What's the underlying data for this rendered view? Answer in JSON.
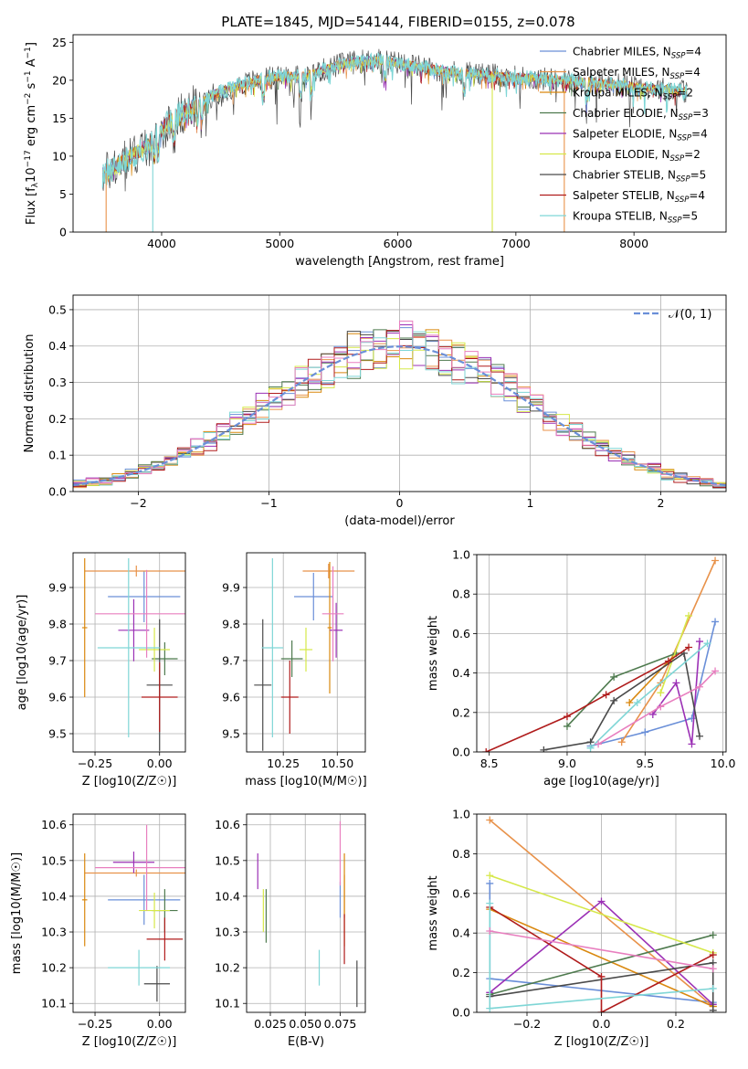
{
  "figure": {
    "title": "PLATE=1845, MJD=54144, FIBERID=0155, z=0.078"
  },
  "legend_models": [
    {
      "label": "Chabrier MILES, N$_{SSP}$=4",
      "base": "Chabrier MILES, N",
      "sub": "SSP",
      "tail": "=4",
      "color": "#6a8fd8"
    },
    {
      "label": "Salpeter MILES, N$_{SSP}$=4",
      "base": "Salpeter MILES, N",
      "sub": "SSP",
      "tail": "=4",
      "color": "#e8924a"
    },
    {
      "label": "Kroupa MILES, N$_{SSP}$=2",
      "base": "Kroupa MILES, N",
      "sub": "SSP",
      "tail": "=2",
      "color": "#d9880f"
    },
    {
      "label": "Chabrier ELODIE, N$_{SSP}$=3",
      "base": "Chabrier ELODIE, N",
      "sub": "SSP",
      "tail": "=3",
      "color": "#4e7a4e"
    },
    {
      "label": "Salpeter ELODIE, N$_{SSP}$=4",
      "base": "Salpeter ELODIE, N",
      "sub": "SSP",
      "tail": "=4",
      "color": "#9b30b5"
    },
    {
      "label": "Kroupa ELODIE, N$_{SSP}$=2",
      "base": "Kroupa ELODIE, N",
      "sub": "SSP",
      "tail": "=2",
      "color": "#d6e84a"
    },
    {
      "label": "Chabrier STELIB, N$_{SSP}$=5",
      "base": "Chabrier STELIB, N",
      "sub": "SSP",
      "tail": "=5",
      "color": "#4a4a4a"
    },
    {
      "label": "Salpeter STELIB, N$_{SSP}$=4",
      "base": "Salpeter STELIB, N",
      "sub": "SSP",
      "tail": "=4",
      "color": "#b01c1c"
    },
    {
      "label": "Kroupa STELIB, N$_{SSP}$=5",
      "base": "Kroupa STELIB, N",
      "sub": "SSP",
      "tail": "=5",
      "color": "#7fd6d6"
    }
  ],
  "chart_data": [
    {
      "id": "spectrum",
      "type": "line",
      "xlabel": "wavelength [Angstrom, rest frame]",
      "ylabel_parts": [
        "Flux [f",
        "λ",
        "10",
        "−17",
        " erg cm",
        "−2",
        " s",
        "−1",
        " A",
        "−1",
        "]"
      ],
      "xlim": [
        3250,
        8780
      ],
      "ylim": [
        0,
        26
      ],
      "xticks": [
        4000,
        5000,
        6000,
        7000,
        8000
      ],
      "yticks": [
        0,
        5,
        10,
        15,
        20,
        25
      ],
      "grid": false,
      "legend": "right",
      "continuum": {
        "x": [
          3500,
          3600,
          3700,
          3800,
          3900,
          4000,
          4100,
          4200,
          4300,
          4400,
          4500,
          4600,
          4700,
          4800,
          4900,
          5000,
          5100,
          5200,
          5300,
          5400,
          5500,
          5600,
          5700,
          5800,
          5900,
          6000,
          6100,
          6200,
          6300,
          6400,
          6500,
          6600,
          6700,
          6800,
          6900,
          7000,
          7100,
          7200,
          7300,
          7400,
          7500,
          7600,
          7700,
          7800,
          7900,
          8000,
          8100,
          8200,
          8300,
          8400,
          8450
        ],
        "y": [
          7.5,
          8.5,
          9.5,
          10.5,
          11.5,
          13.5,
          15.0,
          15.8,
          16.8,
          17.8,
          18.5,
          19.0,
          19.5,
          20.0,
          20.3,
          20.5,
          20.5,
          20.5,
          21.0,
          21.5,
          22.0,
          22.3,
          22.5,
          22.7,
          22.5,
          22.3,
          22.0,
          21.7,
          21.5,
          21.3,
          21.0,
          20.9,
          20.8,
          20.6,
          20.5,
          20.4,
          20.3,
          20.2,
          20.1,
          20.0,
          19.9,
          19.8,
          19.7,
          19.5,
          19.4,
          19.2,
          19.0,
          18.9,
          18.8,
          18.6,
          18.5
        ]
      },
      "drops": [
        {
          "x": 3530,
          "series": "Salpeter MILES"
        },
        {
          "x": 3925,
          "series": "Kroupa STELIB"
        },
        {
          "x": 6800,
          "series": "Kroupa ELODIE"
        },
        {
          "x": 7410,
          "series": "Salpeter MILES"
        }
      ]
    },
    {
      "id": "residual-histogram",
      "type": "histogram",
      "xlabel": "(data-model)/error",
      "ylabel": "Normed distribution",
      "xlim": [
        -2.5,
        2.5
      ],
      "ylim": [
        0,
        0.54
      ],
      "xticks": [
        -2,
        -1,
        0,
        1,
        2
      ],
      "yticks": [
        0.0,
        0.1,
        0.2,
        0.3,
        0.4,
        0.5
      ],
      "grid": true,
      "legend": "top-right",
      "reference": {
        "label": "$\\mathcal{N}(0,1)$",
        "display": "𝒩(0, 1)",
        "mean": 0,
        "sigma": 1,
        "color": "#6a8fd8",
        "style": "dashed"
      },
      "bin_width": 0.1
    },
    {
      "id": "age-vs-Z",
      "type": "errorbar",
      "xlabel": "Z [log10(Z/Z☉)]",
      "ylabel": "age  [log10(age/yr)]",
      "xlim": [
        -0.335,
        0.1
      ],
      "ylim": [
        9.45,
        9.995
      ],
      "xticks": [
        -0.25,
        0.0
      ],
      "yticks": [
        9.5,
        9.6,
        9.7,
        9.8,
        9.9
      ],
      "grid": true,
      "points": [
        {
          "series": "Chabrier MILES",
          "x": -0.06,
          "xerr": 0.14,
          "y": 9.875,
          "yerr": 0.07
        },
        {
          "series": "Salpeter MILES",
          "x": -0.09,
          "xerr": 0.2,
          "y": 9.945,
          "yerr": 0.015
        },
        {
          "series": "Kroupa MILES",
          "x": -0.29,
          "xerr": 0.01,
          "y": 9.79,
          "yerr": 0.19
        },
        {
          "series": "Chabrier ELODIE",
          "x": 0.02,
          "xerr": 0.05,
          "y": 9.705,
          "yerr": 0.045
        },
        {
          "series": "Salpeter ELODIE",
          "x": -0.1,
          "xerr": 0.06,
          "y": 9.783,
          "yerr": 0.085
        },
        {
          "series": "Kroupa ELODIE",
          "x": -0.02,
          "xerr": 0.06,
          "y": 9.73,
          "yerr": 0.06
        },
        {
          "series": "Chabrier STELIB",
          "x": 0.0,
          "xerr": 0.05,
          "y": 9.633,
          "yerr": 0.18
        },
        {
          "series": "Salpeter STELIB",
          "x": 0.0,
          "xerr": 0.07,
          "y": 9.6,
          "yerr": 0.095
        },
        {
          "series": "Kroupa STELIB",
          "x": -0.12,
          "xerr": 0.12,
          "y": 9.735,
          "yerr": 0.245
        },
        {
          "series": "pink",
          "x": -0.05,
          "xerr": 0.2,
          "y": 9.828,
          "yerr": 0.12
        }
      ]
    },
    {
      "id": "age-vs-mass",
      "type": "errorbar",
      "xlabel": "mass [log10(M/M☉)]",
      "ylabel": "",
      "xlim": [
        10.08,
        10.63
      ],
      "ylim": [
        9.45,
        9.995
      ],
      "xticks": [
        10.25,
        10.5
      ],
      "yticks": [
        9.5,
        9.6,
        9.7,
        9.8,
        9.9
      ],
      "grid": true,
      "points": [
        {
          "series": "Chabrier MILES",
          "x": 10.39,
          "xerr": 0.09,
          "y": 9.875,
          "yerr": 0.065
        },
        {
          "series": "Salpeter MILES",
          "x": 10.46,
          "xerr": 0.12,
          "y": 9.945,
          "yerr": 0.02
        },
        {
          "series": "Kroupa MILES",
          "x": 10.465,
          "xerr": 0.01,
          "y": 9.79,
          "yerr": 0.18
        },
        {
          "series": "Chabrier ELODIE",
          "x": 10.29,
          "xerr": 0.05,
          "y": 9.705,
          "yerr": 0.05
        },
        {
          "series": "Salpeter ELODIE",
          "x": 10.495,
          "xerr": 0.03,
          "y": 9.783,
          "yerr": 0.075
        },
        {
          "series": "Kroupa ELODIE",
          "x": 10.355,
          "xerr": 0.03,
          "y": 9.73,
          "yerr": 0.06
        },
        {
          "series": "Chabrier STELIB",
          "x": 10.155,
          "xerr": 0.04,
          "y": 9.633,
          "yerr": 0.18
        },
        {
          "series": "Salpeter STELIB",
          "x": 10.28,
          "xerr": 0.04,
          "y": 9.6,
          "yerr": 0.1
        },
        {
          "series": "Kroupa STELIB",
          "x": 10.2,
          "xerr": 0.05,
          "y": 9.735,
          "yerr": 0.245
        },
        {
          "series": "pink",
          "x": 10.48,
          "xerr": 0.05,
          "y": 9.828,
          "yerr": 0.13
        }
      ]
    },
    {
      "id": "weight-vs-age",
      "type": "line",
      "xlabel": "age  [log10(age/yr)]",
      "ylabel": "mass weight",
      "xlim": [
        8.42,
        10.02
      ],
      "ylim": [
        0,
        1.0
      ],
      "xticks": [
        8.5,
        9.0,
        9.5,
        10.0
      ],
      "yticks": [
        0.0,
        0.2,
        0.4,
        0.6,
        0.8,
        1.0
      ],
      "grid": true,
      "series": [
        {
          "name": "Chabrier MILES",
          "x": [
            9.15,
            9.5,
            9.8,
            9.95
          ],
          "y": [
            0.03,
            0.1,
            0.17,
            0.66
          ]
        },
        {
          "name": "Salpeter MILES",
          "x": [
            9.35,
            9.6,
            9.95
          ],
          "y": [
            0.05,
            0.35,
            0.97
          ]
        },
        {
          "name": "Kroupa MILES",
          "x": [
            9.4,
            9.7
          ],
          "y": [
            0.25,
            0.5
          ]
        },
        {
          "name": "Chabrier ELODIE",
          "x": [
            9.0,
            9.3,
            9.7
          ],
          "y": [
            0.13,
            0.38,
            0.5
          ]
        },
        {
          "name": "Salpeter ELODIE",
          "x": [
            9.55,
            9.7,
            9.8,
            9.85
          ],
          "y": [
            0.19,
            0.35,
            0.04,
            0.56
          ]
        },
        {
          "name": "Kroupa ELODIE",
          "x": [
            9.6,
            9.78
          ],
          "y": [
            0.3,
            0.69
          ]
        },
        {
          "name": "Chabrier STELIB",
          "x": [
            8.85,
            9.15,
            9.3,
            9.75,
            9.85
          ],
          "y": [
            0.01,
            0.05,
            0.26,
            0.5,
            0.08
          ]
        },
        {
          "name": "Salpeter STELIB",
          "x": [
            8.48,
            9.0,
            9.25,
            9.65,
            9.78
          ],
          "y": [
            0.0,
            0.18,
            0.29,
            0.46,
            0.53
          ]
        },
        {
          "name": "Kroupa STELIB",
          "x": [
            9.15,
            9.45,
            9.9
          ],
          "y": [
            0.02,
            0.25,
            0.55
          ]
        },
        {
          "name": "pink",
          "x": [
            9.2,
            9.6,
            9.85,
            9.95
          ],
          "y": [
            0.04,
            0.23,
            0.33,
            0.41
          ]
        }
      ]
    },
    {
      "id": "mass-vs-Z",
      "type": "errorbar",
      "xlabel": "Z [log10(Z/Z☉)]",
      "ylabel": "mass [log10(M/M☉)]",
      "xlim": [
        -0.335,
        0.1
      ],
      "ylim": [
        10.075,
        10.63
      ],
      "xticks": [
        -0.25,
        0.0
      ],
      "yticks": [
        10.1,
        10.2,
        10.3,
        10.4,
        10.5,
        10.6
      ],
      "grid": true,
      "points": [
        {
          "series": "Chabrier MILES",
          "x": -0.06,
          "xerr": 0.14,
          "y": 10.39,
          "yerr": 0.07
        },
        {
          "series": "Salpeter MILES",
          "x": -0.09,
          "xerr": 0.2,
          "y": 10.465,
          "yerr": 0.01
        },
        {
          "series": "Kroupa MILES",
          "x": -0.29,
          "xerr": 0.01,
          "y": 10.39,
          "yerr": 0.13
        },
        {
          "series": "Chabrier ELODIE",
          "x": 0.02,
          "xerr": 0.05,
          "y": 10.36,
          "yerr": 0.06
        },
        {
          "series": "Salpeter ELODIE",
          "x": -0.1,
          "xerr": 0.08,
          "y": 10.495,
          "yerr": 0.03
        },
        {
          "series": "Kroupa ELODIE",
          "x": -0.02,
          "xerr": 0.06,
          "y": 10.36,
          "yerr": 0.05
        },
        {
          "series": "Chabrier STELIB",
          "x": -0.01,
          "xerr": 0.05,
          "y": 10.155,
          "yerr": 0.05
        },
        {
          "series": "Salpeter STELIB",
          "x": 0.02,
          "xerr": 0.07,
          "y": 10.28,
          "yerr": 0.06
        },
        {
          "series": "Kroupa STELIB",
          "x": -0.08,
          "xerr": 0.12,
          "y": 10.2,
          "yerr": 0.05
        },
        {
          "series": "pink",
          "x": -0.05,
          "xerr": 0.2,
          "y": 10.48,
          "yerr": 0.12
        }
      ]
    },
    {
      "id": "mass-vs-EBV",
      "type": "errorbar",
      "xlabel": "E(B-V)",
      "ylabel": "",
      "xlim": [
        0.008,
        0.093
      ],
      "ylim": [
        10.075,
        10.63
      ],
      "xticks": [
        0.025,
        0.05,
        0.075
      ],
      "xticklabels": [
        "0.025",
        "0.050",
        "0.075"
      ],
      "yticks": [
        10.1,
        10.2,
        10.3,
        10.4,
        10.5,
        10.6
      ],
      "grid": true,
      "points": [
        {
          "series": "Chabrier MILES",
          "x": 0.075,
          "xerr": 0,
          "y": 10.39,
          "yerr": 0.05
        },
        {
          "series": "Salpeter MILES",
          "x": 0.078,
          "xerr": 0,
          "y": 10.4,
          "yerr": 0.06
        },
        {
          "series": "Kroupa MILES",
          "x": 0.078,
          "xerr": 0,
          "y": 10.39,
          "yerr": 0.13
        },
        {
          "series": "Chabrier ELODIE",
          "x": 0.022,
          "xerr": 0,
          "y": 10.345,
          "yerr": 0.075
        },
        {
          "series": "Salpeter ELODIE",
          "x": 0.016,
          "xerr": 0,
          "y": 10.47,
          "yerr": 0.05
        },
        {
          "series": "Kroupa ELODIE",
          "x": 0.02,
          "xerr": 0,
          "y": 10.36,
          "yerr": 0.06
        },
        {
          "series": "Chabrier STELIB",
          "x": 0.087,
          "xerr": 0,
          "y": 10.155,
          "yerr": 0.065
        },
        {
          "series": "Salpeter STELIB",
          "x": 0.078,
          "xerr": 0,
          "y": 10.28,
          "yerr": 0.07
        },
        {
          "series": "Kroupa STELIB",
          "x": 0.06,
          "xerr": 0,
          "y": 10.2,
          "yerr": 0.05
        },
        {
          "series": "pink",
          "x": 0.075,
          "xerr": 0,
          "y": 10.52,
          "yerr": 0.09
        }
      ]
    },
    {
      "id": "weight-vs-Z",
      "type": "line",
      "xlabel": "Z [log10(Z/Z☉)]",
      "ylabel": "mass weight",
      "xlim": [
        -0.335,
        0.335
      ],
      "ylim": [
        0,
        1.0
      ],
      "xticks": [
        -0.2,
        0.0,
        0.2
      ],
      "yticks": [
        0.0,
        0.2,
        0.4,
        0.6,
        0.8,
        1.0
      ],
      "grid": true,
      "series": [
        {
          "name": "Chabrier MILES",
          "x": [
            -0.3,
            -0.3,
            0.3
          ],
          "y": [
            0.65,
            0.17,
            0.05
          ]
        },
        {
          "name": "Salpeter MILES",
          "x": [
            -0.3,
            0.3
          ],
          "y": [
            0.97,
            0.03
          ]
        },
        {
          "name": "Kroupa MILES",
          "x": [
            -0.3,
            0.3
          ],
          "y": [
            0.52,
            0.03
          ]
        },
        {
          "name": "Chabrier ELODIE",
          "x": [
            -0.3,
            0.3
          ],
          "y": [
            0.09,
            0.39
          ]
        },
        {
          "name": "Salpeter ELODIE",
          "x": [
            -0.3,
            0.0,
            0.3
          ],
          "y": [
            0.1,
            0.56,
            0.04
          ]
        },
        {
          "name": "Kroupa ELODIE",
          "x": [
            -0.3,
            0.3
          ],
          "y": [
            0.69,
            0.3
          ]
        },
        {
          "name": "Chabrier STELIB",
          "x": [
            -0.3,
            0.3,
            0.3
          ],
          "y": [
            0.08,
            0.25,
            0.01
          ]
        },
        {
          "name": "Salpeter STELIB",
          "x": [
            -0.3,
            0.0,
            0.0,
            0.3
          ],
          "y": [
            0.53,
            0.18,
            0.0,
            0.29
          ]
        },
        {
          "name": "Kroupa STELIB",
          "x": [
            -0.3,
            -0.3,
            0.3
          ],
          "y": [
            0.55,
            0.02,
            0.12
          ]
        },
        {
          "name": "pink",
          "x": [
            -0.3,
            0.3
          ],
          "y": [
            0.41,
            0.22
          ]
        }
      ]
    }
  ],
  "extra_series_colors": {
    "pink": "#e87fbf"
  }
}
